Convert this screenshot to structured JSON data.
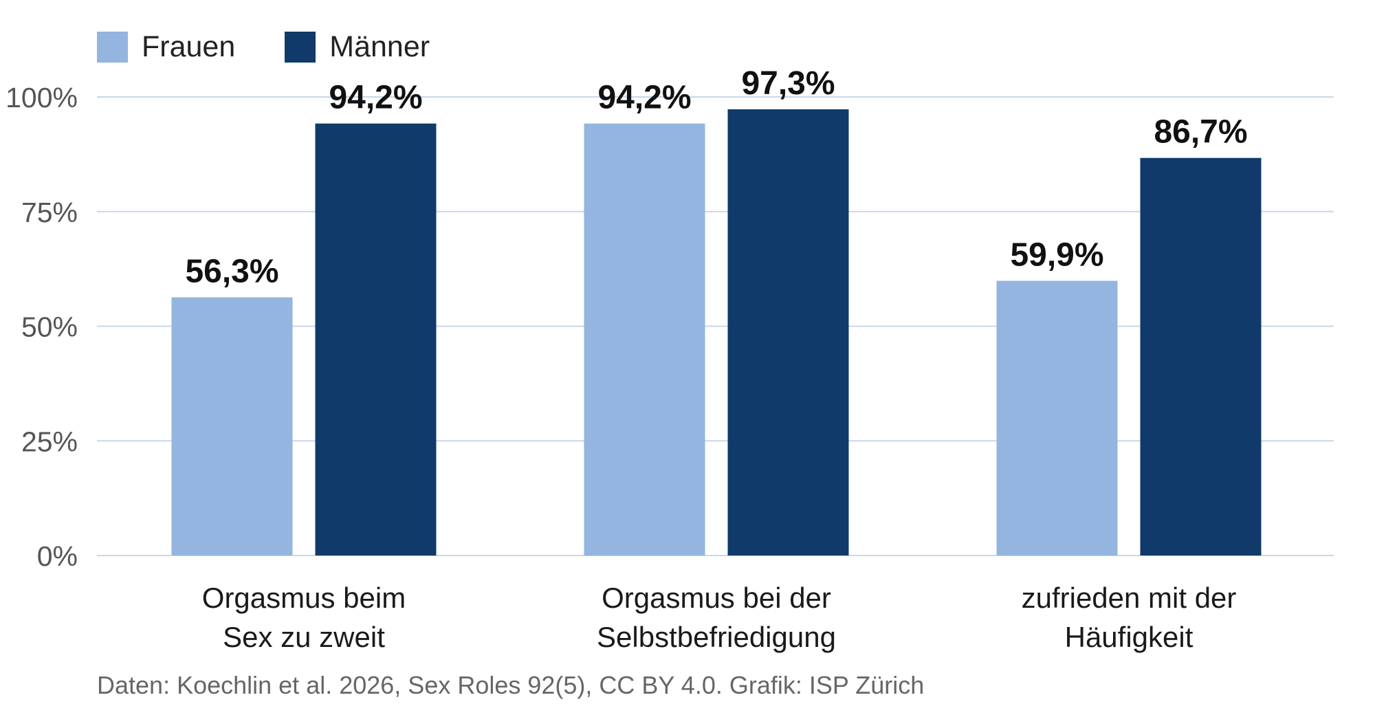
{
  "chart_data": {
    "type": "bar",
    "categories": [
      [
        "Orgasmus beim",
        "Sex zu zweit"
      ],
      [
        "Orgasmus bei der",
        "Selbstbefriedigung"
      ],
      [
        "zufrieden mit der",
        "Häufigkeit"
      ]
    ],
    "series": [
      {
        "name": "Frauen",
        "color": "#93b5df",
        "values": [
          56.3,
          94.2,
          59.9
        ],
        "labels": [
          "56,3%",
          "94,2%",
          "59,9%"
        ]
      },
      {
        "name": "Männer",
        "color": "#0f3a6a",
        "values": [
          94.2,
          97.3,
          86.7
        ],
        "labels": [
          "94,2%",
          "97,3%",
          "86,7%"
        ]
      }
    ],
    "yticks": [
      {
        "value": 0,
        "label": "0%"
      },
      {
        "value": 25,
        "label": "25%"
      },
      {
        "value": 50,
        "label": "50%"
      },
      {
        "value": 75,
        "label": "75%"
      },
      {
        "value": 100,
        "label": "100%"
      }
    ],
    "ylim": [
      0,
      100
    ],
    "grid": true,
    "legend_position": "top-left",
    "source": "Daten: Koechlin et al. 2026, Sex Roles 92(5), CC BY 4.0. Grafik: ISP Zürich"
  }
}
